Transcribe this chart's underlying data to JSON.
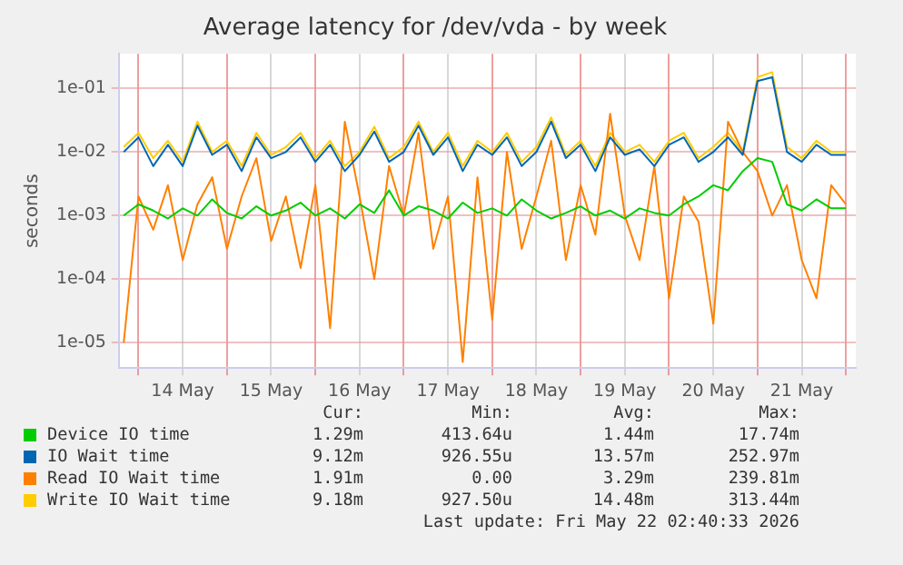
{
  "chart_data": {
    "type": "line",
    "title": "Average latency for /dev/vda - by week",
    "ylabel": "seconds",
    "log": "y",
    "grid": true,
    "legend": "bottom",
    "marker": "none",
    "line_style": "solid",
    "xlim": [
      "2026-05-13T18:40",
      "2026-05-22T02:40"
    ],
    "ylim": [
      4e-06,
      0.35
    ],
    "yticks": [
      {
        "value": 0.1,
        "label": "1e-01"
      },
      {
        "value": 0.01,
        "label": "1e-02"
      },
      {
        "value": 0.001,
        "label": "1e-03"
      },
      {
        "value": 0.0001,
        "label": "1e-04"
      },
      {
        "value": 1e-05,
        "label": "1e-05"
      }
    ],
    "xticks": [
      {
        "value": "2026-05-14T00:00",
        "label": null
      },
      {
        "value": "2026-05-14T12:00",
        "label": "14 May"
      },
      {
        "value": "2026-05-15T00:00",
        "label": null
      },
      {
        "value": "2026-05-15T12:00",
        "label": "15 May"
      },
      {
        "value": "2026-05-16T00:00",
        "label": null
      },
      {
        "value": "2026-05-16T12:00",
        "label": "16 May"
      },
      {
        "value": "2026-05-17T00:00",
        "label": null
      },
      {
        "value": "2026-05-17T12:00",
        "label": "17 May"
      },
      {
        "value": "2026-05-18T00:00",
        "label": null
      },
      {
        "value": "2026-05-18T12:00",
        "label": "18 May"
      },
      {
        "value": "2026-05-19T00:00",
        "label": null
      },
      {
        "value": "2026-05-19T12:00",
        "label": "19 May"
      },
      {
        "value": "2026-05-20T00:00",
        "label": null
      },
      {
        "value": "2026-05-20T12:00",
        "label": "20 May"
      },
      {
        "value": "2026-05-21T00:00",
        "label": null
      },
      {
        "value": "2026-05-21T12:00",
        "label": "21 May"
      },
      {
        "value": "2026-05-22T00:00",
        "label": null
      }
    ],
    "x": [
      "2026-05-13T20:00",
      "2026-05-14T00:00",
      "2026-05-14T04:00",
      "2026-05-14T08:00",
      "2026-05-14T12:00",
      "2026-05-14T16:00",
      "2026-05-14T20:00",
      "2026-05-15T00:00",
      "2026-05-15T04:00",
      "2026-05-15T08:00",
      "2026-05-15T12:00",
      "2026-05-15T16:00",
      "2026-05-15T20:00",
      "2026-05-16T00:00",
      "2026-05-16T04:00",
      "2026-05-16T08:00",
      "2026-05-16T12:00",
      "2026-05-16T16:00",
      "2026-05-16T20:00",
      "2026-05-17T00:00",
      "2026-05-17T04:00",
      "2026-05-17T08:00",
      "2026-05-17T12:00",
      "2026-05-17T16:00",
      "2026-05-17T20:00",
      "2026-05-18T00:00",
      "2026-05-18T04:00",
      "2026-05-18T08:00",
      "2026-05-18T12:00",
      "2026-05-18T16:00",
      "2026-05-18T20:00",
      "2026-05-19T00:00",
      "2026-05-19T04:00",
      "2026-05-19T08:00",
      "2026-05-19T12:00",
      "2026-05-19T16:00",
      "2026-05-19T20:00",
      "2026-05-20T00:00",
      "2026-05-20T04:00",
      "2026-05-20T08:00",
      "2026-05-20T12:00",
      "2026-05-20T16:00",
      "2026-05-20T20:00",
      "2026-05-21T00:00",
      "2026-05-21T04:00",
      "2026-05-21T08:00",
      "2026-05-21T12:00",
      "2026-05-21T16:00",
      "2026-05-21T20:00",
      "2026-05-22T00:00"
    ],
    "series": [
      {
        "name": "Device IO time",
        "color": "#00cc00",
        "values": [
          0.001,
          0.0015,
          0.0012,
          0.0009,
          0.0013,
          0.001,
          0.0018,
          0.0011,
          0.0009,
          0.0014,
          0.001,
          0.0012,
          0.0016,
          0.001,
          0.0013,
          0.0009,
          0.0015,
          0.0011,
          0.0025,
          0.001,
          0.0014,
          0.0012,
          0.0009,
          0.0016,
          0.0011,
          0.0013,
          0.001,
          0.0018,
          0.0012,
          0.0009,
          0.0011,
          0.0014,
          0.001,
          0.0012,
          0.0009,
          0.0013,
          0.0011,
          0.001,
          0.0015,
          0.002,
          0.003,
          0.0025,
          0.005,
          0.008,
          0.007,
          0.0015,
          0.0012,
          0.0018,
          0.0013,
          0.0013
        ]
      },
      {
        "name": "IO Wait time",
        "color": "#0066b3",
        "values": [
          0.01,
          0.017,
          0.006,
          0.013,
          0.006,
          0.026,
          0.009,
          0.013,
          0.005,
          0.017,
          0.008,
          0.01,
          0.017,
          0.007,
          0.013,
          0.005,
          0.009,
          0.021,
          0.007,
          0.01,
          0.026,
          0.009,
          0.017,
          0.005,
          0.013,
          0.009,
          0.017,
          0.006,
          0.01,
          0.03,
          0.008,
          0.013,
          0.005,
          0.017,
          0.009,
          0.011,
          0.006,
          0.013,
          0.017,
          0.007,
          0.01,
          0.017,
          0.009,
          0.13,
          0.15,
          0.01,
          0.007,
          0.013,
          0.009,
          0.009
        ]
      },
      {
        "name": "Read IO Wait time",
        "color": "#ff8000",
        "values": [
          1e-05,
          0.002,
          0.0006,
          0.003,
          0.0002,
          0.0015,
          0.004,
          0.0003,
          0.002,
          0.008,
          0.0004,
          0.002,
          0.00015,
          0.003,
          1.7e-05,
          0.03,
          0.002,
          0.0001,
          0.006,
          0.001,
          0.02,
          0.0003,
          0.002,
          5e-06,
          0.004,
          2.3e-05,
          0.01,
          0.0003,
          0.002,
          0.015,
          0.0002,
          0.003,
          0.0005,
          0.04,
          0.001,
          0.0002,
          0.006,
          5e-05,
          0.002,
          0.0008,
          2e-05,
          0.03,
          0.01,
          0.005,
          0.001,
          0.003,
          0.0002,
          5e-05,
          0.003,
          0.0015
        ]
      },
      {
        "name": "Write IO Wait time",
        "color": "#ffcc00",
        "values": [
          0.012,
          0.02,
          0.008,
          0.015,
          0.007,
          0.03,
          0.01,
          0.015,
          0.006,
          0.02,
          0.009,
          0.012,
          0.02,
          0.008,
          0.015,
          0.006,
          0.01,
          0.025,
          0.008,
          0.012,
          0.03,
          0.01,
          0.02,
          0.006,
          0.015,
          0.01,
          0.02,
          0.007,
          0.012,
          0.035,
          0.009,
          0.015,
          0.006,
          0.02,
          0.01,
          0.013,
          0.007,
          0.015,
          0.02,
          0.008,
          0.012,
          0.02,
          0.01,
          0.15,
          0.18,
          0.012,
          0.008,
          0.015,
          0.01,
          0.01
        ]
      }
    ],
    "annotations": [
      "Cur:",
      "Min:",
      "Avg:",
      "Max:",
      "1.29m",
      "413.64u",
      "1.44m",
      "17.74m",
      "9.12m",
      "926.55u",
      "13.57m",
      "252.97m",
      "1.91m",
      "0.00",
      "3.29m",
      "239.81m",
      "9.18m",
      "927.50u",
      "14.48m",
      "313.44m",
      "Last update: Fri May 22 02:40:33 2026"
    ]
  }
}
